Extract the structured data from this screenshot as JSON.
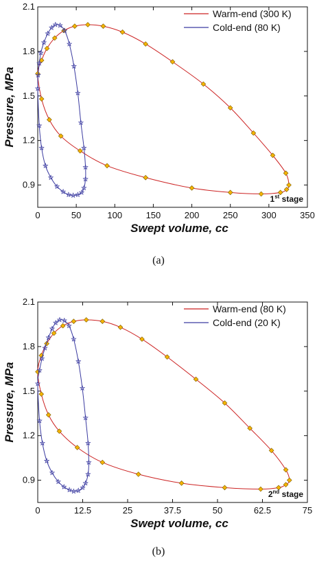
{
  "chart_data": [
    {
      "type": "line",
      "panel_caption": "(a)",
      "stage_label": {
        "prefix": "1",
        "sup": "st",
        "suffix": " stage"
      },
      "xlabel": "Swept volume, cc",
      "ylabel": "Pressure, MPa",
      "xlim": [
        0,
        350
      ],
      "ylim": [
        0.75,
        2.1
      ],
      "xticks": [
        0,
        50,
        100,
        150,
        200,
        250,
        300,
        350
      ],
      "xtick_labels": [
        "0",
        "50",
        "100",
        "150",
        "200",
        "250",
        "300",
        "350"
      ],
      "yticks": [
        0.9,
        1.2,
        1.5,
        1.8,
        2.1
      ],
      "ytick_labels": [
        "0.9",
        "1.2",
        "1.5",
        "1.8",
        "2.1"
      ],
      "grid": false,
      "legend_position": "top-right",
      "series": [
        {
          "name": "Warm-end (300 K)",
          "line_color": "#cc2222",
          "marker": "diamond",
          "marker_color": "#f5b400",
          "marker_edge": "#7a5a00",
          "x": [
            0,
            5,
            15,
            30,
            55,
            90,
            140,
            200,
            250,
            290,
            315,
            323,
            326,
            322,
            305,
            280,
            250,
            215,
            175,
            140,
            110,
            85,
            65,
            48,
            34,
            22,
            12,
            5,
            0
          ],
          "y": [
            1.65,
            1.48,
            1.34,
            1.23,
            1.13,
            1.03,
            0.95,
            0.88,
            0.85,
            0.84,
            0.85,
            0.87,
            0.9,
            0.98,
            1.1,
            1.25,
            1.42,
            1.58,
            1.73,
            1.85,
            1.93,
            1.97,
            1.98,
            1.97,
            1.94,
            1.89,
            1.82,
            1.74,
            1.65
          ]
        },
        {
          "name": "Cold-end (80 K)",
          "line_color": "#3a3aa0",
          "marker": "star",
          "marker_color": "#3a3aa0",
          "marker_edge": "#3a3aa0",
          "x": [
            0,
            2,
            5,
            10,
            17,
            25,
            33,
            40,
            46,
            52,
            57,
            60,
            62,
            62,
            60,
            56,
            52,
            47,
            41,
            35,
            29,
            23,
            18,
            13,
            8,
            4,
            2,
            0.5,
            0
          ],
          "y": [
            1.55,
            1.3,
            1.15,
            1.03,
            0.95,
            0.89,
            0.855,
            0.835,
            0.83,
            0.835,
            0.85,
            0.88,
            0.94,
            1.02,
            1.15,
            1.32,
            1.52,
            1.7,
            1.85,
            1.94,
            1.975,
            1.98,
            1.96,
            1.92,
            1.86,
            1.79,
            1.72,
            1.64,
            1.55
          ]
        }
      ]
    },
    {
      "type": "line",
      "panel_caption": "(b)",
      "stage_label": {
        "prefix": "2",
        "sup": "nd",
        "suffix": " stage"
      },
      "xlabel": "Swept volume, cc",
      "ylabel": "Pressure, MPa",
      "xlim": [
        0,
        75
      ],
      "ylim": [
        0.75,
        2.1
      ],
      "xticks": [
        0,
        12.5,
        25,
        37.5,
        50,
        62.5,
        75
      ],
      "xtick_labels": [
        "0",
        "12.5",
        "25",
        "37.5",
        "50",
        "62.5",
        "75"
      ],
      "yticks": [
        0.9,
        1.2,
        1.5,
        1.8,
        2.1
      ],
      "ytick_labels": [
        "0.9",
        "1.2",
        "1.5",
        "1.8",
        "2.1"
      ],
      "grid": false,
      "legend_position": "top-right",
      "series": [
        {
          "name": "Warm-end (80 K)",
          "line_color": "#cc2222",
          "marker": "diamond",
          "marker_color": "#f5b400",
          "marker_edge": "#7a5a00",
          "x": [
            0,
            1,
            3,
            6,
            11,
            18,
            28,
            40,
            52,
            62,
            67,
            69,
            70,
            69,
            65,
            59,
            52,
            44,
            36,
            29,
            23,
            18,
            13.5,
            10,
            7,
            4.5,
            2.5,
            1,
            0
          ],
          "y": [
            1.63,
            1.48,
            1.34,
            1.23,
            1.12,
            1.02,
            0.94,
            0.88,
            0.85,
            0.84,
            0.85,
            0.87,
            0.9,
            0.97,
            1.1,
            1.25,
            1.42,
            1.58,
            1.73,
            1.85,
            1.93,
            1.97,
            1.98,
            1.97,
            1.94,
            1.89,
            1.82,
            1.74,
            1.63
          ]
        },
        {
          "name": "Cold-end (20 K)",
          "line_color": "#3a3aa0",
          "marker": "star",
          "marker_color": "#3a3aa0",
          "marker_edge": "#3a3aa0",
          "x": [
            0,
            0.5,
            1.3,
            2.5,
            4,
            5.7,
            7.3,
            8.8,
            10,
            11.3,
            12.5,
            13.3,
            14,
            14.2,
            14,
            13.3,
            12.4,
            11.3,
            10,
            8.7,
            7.4,
            6.1,
            5,
            4,
            3,
            2,
            1.2,
            0.5,
            0
          ],
          "y": [
            1.55,
            1.3,
            1.15,
            1.03,
            0.95,
            0.89,
            0.855,
            0.835,
            0.825,
            0.83,
            0.85,
            0.88,
            0.94,
            1.02,
            1.15,
            1.32,
            1.52,
            1.7,
            1.85,
            1.94,
            1.975,
            1.98,
            1.96,
            1.92,
            1.86,
            1.79,
            1.72,
            1.64,
            1.55
          ]
        }
      ]
    }
  ]
}
